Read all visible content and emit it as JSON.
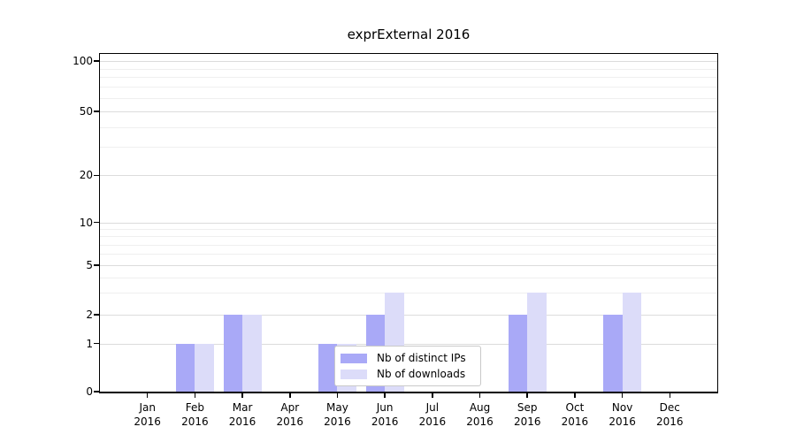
{
  "chart_data": {
    "type": "bar",
    "title": "exprExternal 2016",
    "categories": [
      {
        "month": "Jan",
        "year": "2016"
      },
      {
        "month": "Feb",
        "year": "2016"
      },
      {
        "month": "Mar",
        "year": "2016"
      },
      {
        "month": "Apr",
        "year": "2016"
      },
      {
        "month": "May",
        "year": "2016"
      },
      {
        "month": "Jun",
        "year": "2016"
      },
      {
        "month": "Jul",
        "year": "2016"
      },
      {
        "month": "Aug",
        "year": "2016"
      },
      {
        "month": "Sep",
        "year": "2016"
      },
      {
        "month": "Oct",
        "year": "2016"
      },
      {
        "month": "Nov",
        "year": "2016"
      },
      {
        "month": "Dec",
        "year": "2016"
      }
    ],
    "series": [
      {
        "name": "Nb of distinct IPs",
        "color": "#a9a9f7",
        "values": [
          0,
          1,
          2,
          0,
          1,
          2,
          0,
          0,
          2,
          0,
          2,
          0
        ]
      },
      {
        "name": "Nb of downloads",
        "color": "#dcdcf9",
        "values": [
          0,
          1,
          2,
          0,
          1,
          3,
          0,
          0,
          3,
          0,
          3,
          0
        ]
      }
    ],
    "y_axis": {
      "scale": "log-like",
      "range": [
        0,
        100
      ],
      "major_ticks": [
        0,
        1,
        2,
        5,
        10,
        20,
        50,
        100
      ],
      "minor_gridlines": [
        3,
        4,
        6,
        7,
        8,
        9,
        30,
        40,
        60,
        70,
        80,
        90
      ]
    },
    "legend": {
      "position": "bottom-center"
    }
  }
}
